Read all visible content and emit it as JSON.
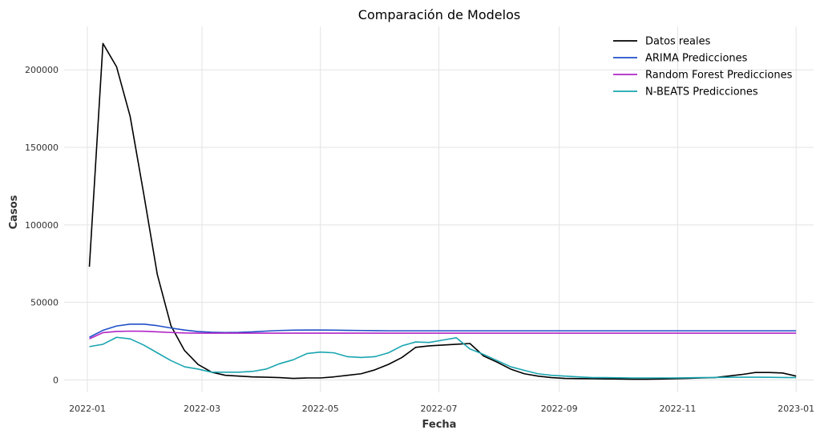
{
  "chart_data": {
    "type": "line",
    "title": "Comparación de Modelos",
    "xlabel": "Fecha",
    "ylabel": "Casos",
    "xlim": [
      "2021-12-20",
      "2023-01-10"
    ],
    "ylim": [
      -8000,
      228000
    ],
    "grid": true,
    "legend_position": "top-right",
    "x_ticks": [
      "2022-01",
      "2022-03",
      "2022-05",
      "2022-07",
      "2022-09",
      "2022-11",
      "2023-01"
    ],
    "y_ticks": [
      0,
      50000,
      100000,
      150000,
      200000
    ],
    "x": [
      "2022-01-02",
      "2022-01-09",
      "2022-01-16",
      "2022-01-23",
      "2022-01-30",
      "2022-02-06",
      "2022-02-13",
      "2022-02-20",
      "2022-02-27",
      "2022-03-06",
      "2022-03-13",
      "2022-03-20",
      "2022-03-27",
      "2022-04-03",
      "2022-04-10",
      "2022-04-17",
      "2022-04-24",
      "2022-05-01",
      "2022-05-08",
      "2022-05-15",
      "2022-05-22",
      "2022-05-29",
      "2022-06-05",
      "2022-06-12",
      "2022-06-19",
      "2022-06-26",
      "2022-07-03",
      "2022-07-10",
      "2022-07-17",
      "2022-07-24",
      "2022-07-31",
      "2022-08-07",
      "2022-08-14",
      "2022-08-21",
      "2022-08-28",
      "2022-09-04",
      "2022-09-11",
      "2022-09-18",
      "2022-09-25",
      "2022-10-02",
      "2022-10-09",
      "2022-10-16",
      "2022-10-23",
      "2022-10-30",
      "2022-11-06",
      "2022-11-13",
      "2022-11-20",
      "2022-11-27",
      "2022-12-04",
      "2022-12-11",
      "2022-12-18",
      "2022-12-25",
      "2023-01-01"
    ],
    "series": [
      {
        "name": "Datos reales",
        "color": "#000000",
        "values": [
          73000,
          217000,
          202000,
          170000,
          120000,
          68000,
          35000,
          19000,
          10000,
          5000,
          3000,
          2500,
          2000,
          1800,
          1500,
          1000,
          1300,
          1300,
          2000,
          3000,
          4000,
          6500,
          10000,
          14500,
          21000,
          22000,
          22500,
          23000,
          23500,
          15500,
          11500,
          7000,
          4000,
          2500,
          1500,
          1000,
          900,
          800,
          700,
          600,
          500,
          500,
          600,
          800,
          1000,
          1300,
          1500,
          2500,
          3500,
          4800,
          4800,
          4500,
          2500
        ]
      },
      {
        "name": "ARIMA Predicciones",
        "color": "#1f4fc8",
        "values": [
          27500,
          32000,
          34800,
          36000,
          36000,
          35000,
          33500,
          32200,
          31200,
          30800,
          30600,
          30700,
          31000,
          31500,
          31900,
          32100,
          32200,
          32200,
          32100,
          32000,
          31900,
          31800,
          31700,
          31700,
          31700,
          31700,
          31700,
          31700,
          31700,
          31700,
          31700,
          31700,
          31700,
          31700,
          31700,
          31700,
          31700,
          31700,
          31700,
          31700,
          31700,
          31700,
          31700,
          31700,
          31700,
          31700,
          31700,
          31700,
          31700,
          31700,
          31700,
          31700,
          31700
        ]
      },
      {
        "name": "Random Forest Predicciones",
        "color": "#b024c6",
        "values": [
          26500,
          30500,
          31300,
          31500,
          31400,
          31000,
          30600,
          30300,
          30200,
          30200,
          30200,
          30200,
          30200,
          30200,
          30200,
          30200,
          30200,
          30200,
          30200,
          30200,
          30200,
          30200,
          30200,
          30200,
          30200,
          30200,
          30200,
          30200,
          30200,
          30200,
          30200,
          30200,
          30200,
          30200,
          30200,
          30200,
          30200,
          30200,
          30200,
          30200,
          30200,
          30200,
          30200,
          30200,
          30200,
          30200,
          30200,
          30200,
          30200,
          30200,
          30200,
          30200,
          30200
        ]
      },
      {
        "name": "N-BEATS Predicciones",
        "color": "#1aa5b0",
        "values": [
          21500,
          23000,
          27500,
          26500,
          22500,
          17500,
          12500,
          8500,
          7000,
          5000,
          5000,
          5000,
          5500,
          7000,
          10500,
          13000,
          17000,
          18000,
          17500,
          15000,
          14500,
          15000,
          17500,
          22000,
          24500,
          24200,
          25700,
          27200,
          20000,
          16500,
          12500,
          8500,
          6200,
          4000,
          3000,
          2500,
          2000,
          1500,
          1500,
          1400,
          1300,
          1300,
          1300,
          1300,
          1400,
          1500,
          1600,
          1700,
          1800,
          1800,
          1700,
          1600,
          1500
        ]
      }
    ]
  }
}
